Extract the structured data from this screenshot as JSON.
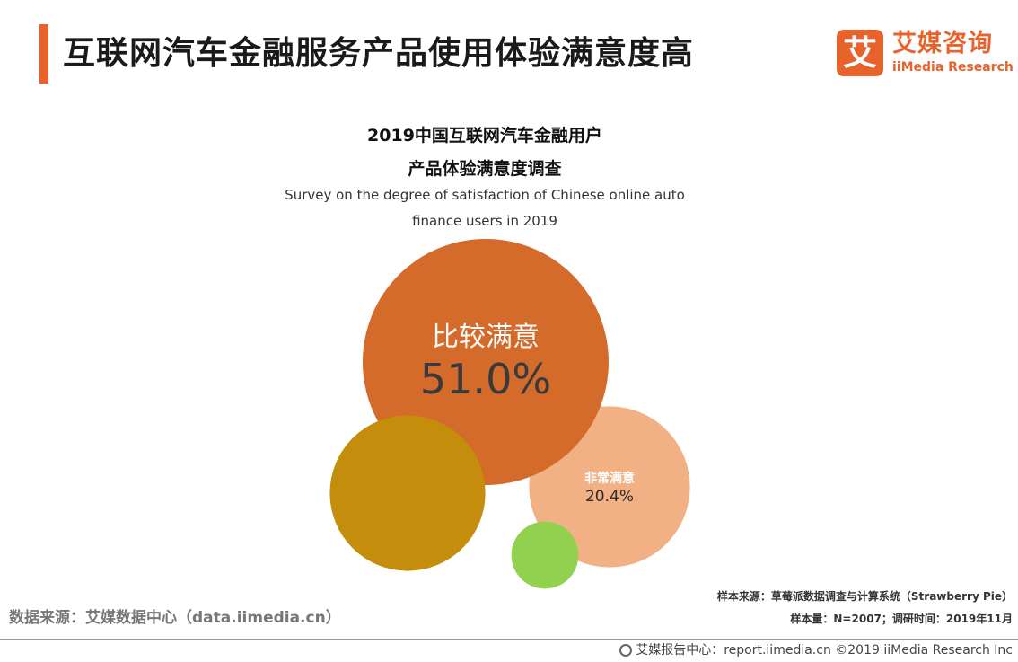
{
  "header": {
    "title": "互联网汽车金融服务产品使用体验满意度高",
    "accent_color": "#e8622c"
  },
  "logo": {
    "mark": "艾",
    "name_cn": "艾媒咨询",
    "name_en": "iiMedia Research",
    "color": "#e8622c"
  },
  "chart_data": {
    "type": "bubble",
    "title_line1": "2019中国互联网汽车金融用户",
    "title_line2": "产品体验满意度调查",
    "subtitle_line1": "Survey on the degree of satisfaction  of Chinese online auto",
    "subtitle_line2": "finance users in 2019",
    "unit": "%",
    "bubbles": [
      {
        "label": "比较满意",
        "value": 51.0,
        "display": "51.0%",
        "color": "#d46b2a",
        "labelled": true
      },
      {
        "label": "非常满意",
        "value": 20.4,
        "display": "20.4%",
        "color": "#c48d0c",
        "labelled": true
      },
      {
        "label": "",
        "value": 21.8,
        "display": "",
        "color": "#f2b185",
        "labelled": false
      },
      {
        "label": "",
        "value": 3.8,
        "display": "",
        "color": "#92d050",
        "labelled": false
      }
    ]
  },
  "sources": {
    "left": "数据来源：艾媒数据中心（data.iimedia.cn）",
    "sample_source": "样本来源：草莓派数据调查与计算系统（Strawberry Pie）",
    "sample_info": "样本量：N=2007；调研时间：2019年11月"
  },
  "footer": {
    "text": "艾媒报告中心：report.iimedia.cn  ©2019  iiMedia Research  Inc"
  }
}
